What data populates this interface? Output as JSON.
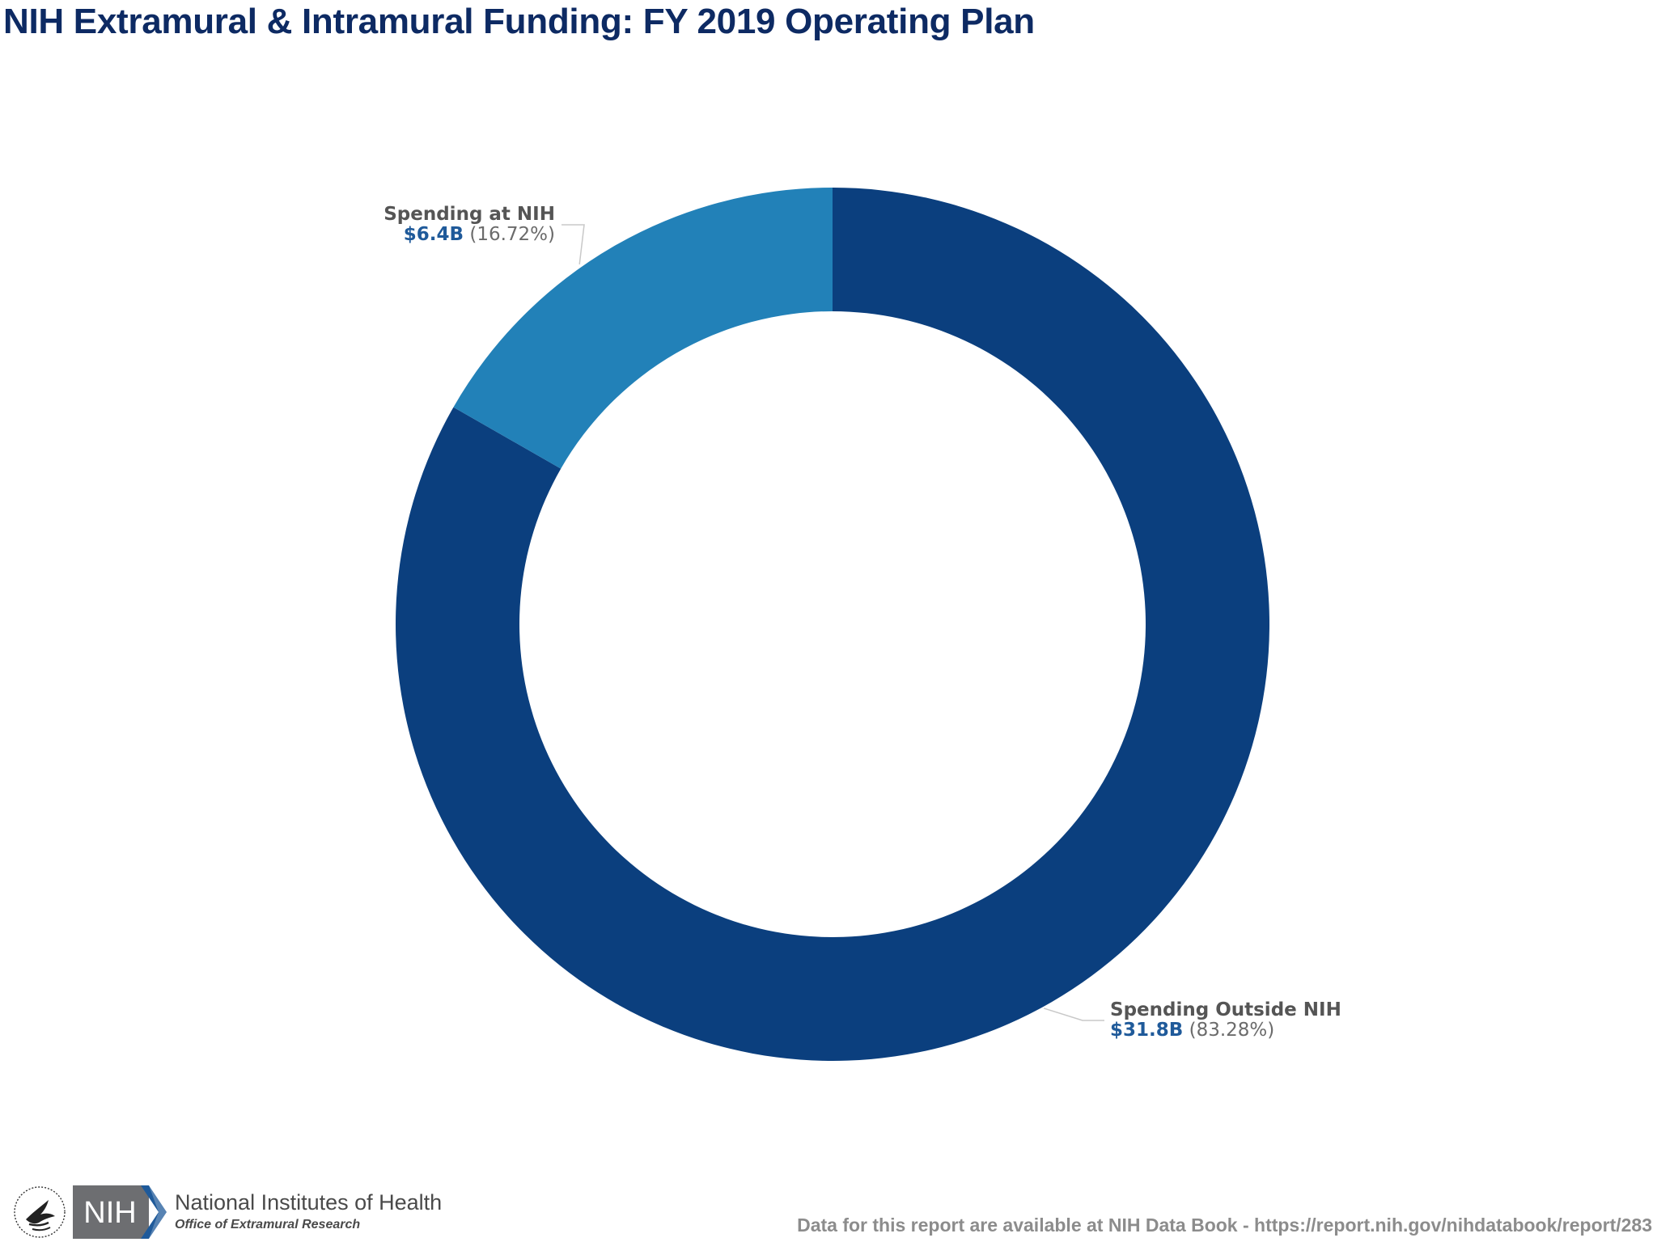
{
  "chart_data": {
    "type": "pie",
    "title": "NIH Extramural & Intramural Funding: FY 2019 Operating Plan",
    "donut": true,
    "slices": [
      {
        "label": "Spending Outside NIH",
        "value_text": "$31.8B",
        "value": 31.8,
        "percent_text": "(83.28%)",
        "percent": 83.28,
        "color": "#0b3f7e"
      },
      {
        "label": "Spending at NIH",
        "value_text": "$6.4B",
        "value": 6.4,
        "percent_text": "(16.72%)",
        "percent": 16.72,
        "color": "#2281b8"
      }
    ]
  },
  "footer": {
    "org_name": "National Institutes of Health",
    "org_office": "Office of Extramural Research",
    "nih_logo_text": "NIH",
    "source_note": "Data for this report are available at NIH Data Book - https://report.nih.gov/nihdatabook/report/283"
  },
  "colors": {
    "title": "#0d2a63",
    "leader_line": "#c8c8c8",
    "nih_badge": "#6d6e71",
    "nih_badge_accent": "#1f5a9a"
  },
  "icons": {
    "hhs_seal": "hhs-eagle-seal-icon",
    "nih_logo": "nih-logo-icon"
  }
}
